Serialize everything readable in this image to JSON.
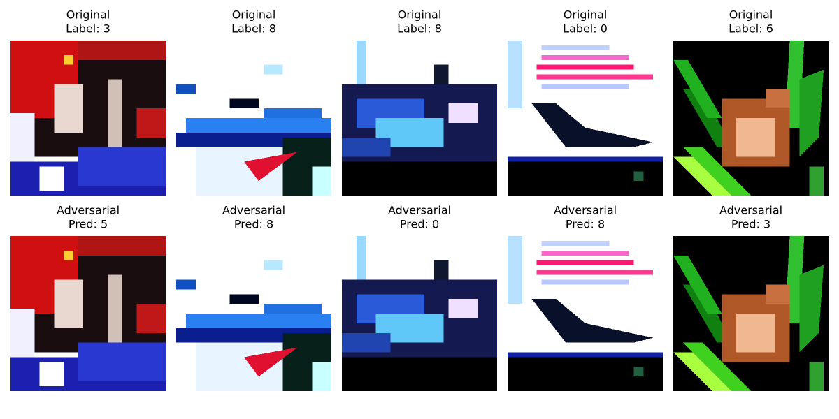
{
  "rows": [
    {
      "panels": [
        {
          "heading": "Original",
          "caption": "Label: 3"
        },
        {
          "heading": "Original",
          "caption": "Label: 8"
        },
        {
          "heading": "Original",
          "caption": "Label: 8"
        },
        {
          "heading": "Original",
          "caption": "Label: 0"
        },
        {
          "heading": "Original",
          "caption": "Label: 6"
        }
      ]
    },
    {
      "panels": [
        {
          "heading": "Adversarial",
          "caption": "Pred: 5"
        },
        {
          "heading": "Adversarial",
          "caption": "Pred: 8"
        },
        {
          "heading": "Adversarial",
          "caption": "Pred: 0"
        },
        {
          "heading": "Adversarial",
          "caption": "Pred: 8"
        },
        {
          "heading": "Adversarial",
          "caption": "Pred: 3"
        }
      ]
    }
  ]
}
